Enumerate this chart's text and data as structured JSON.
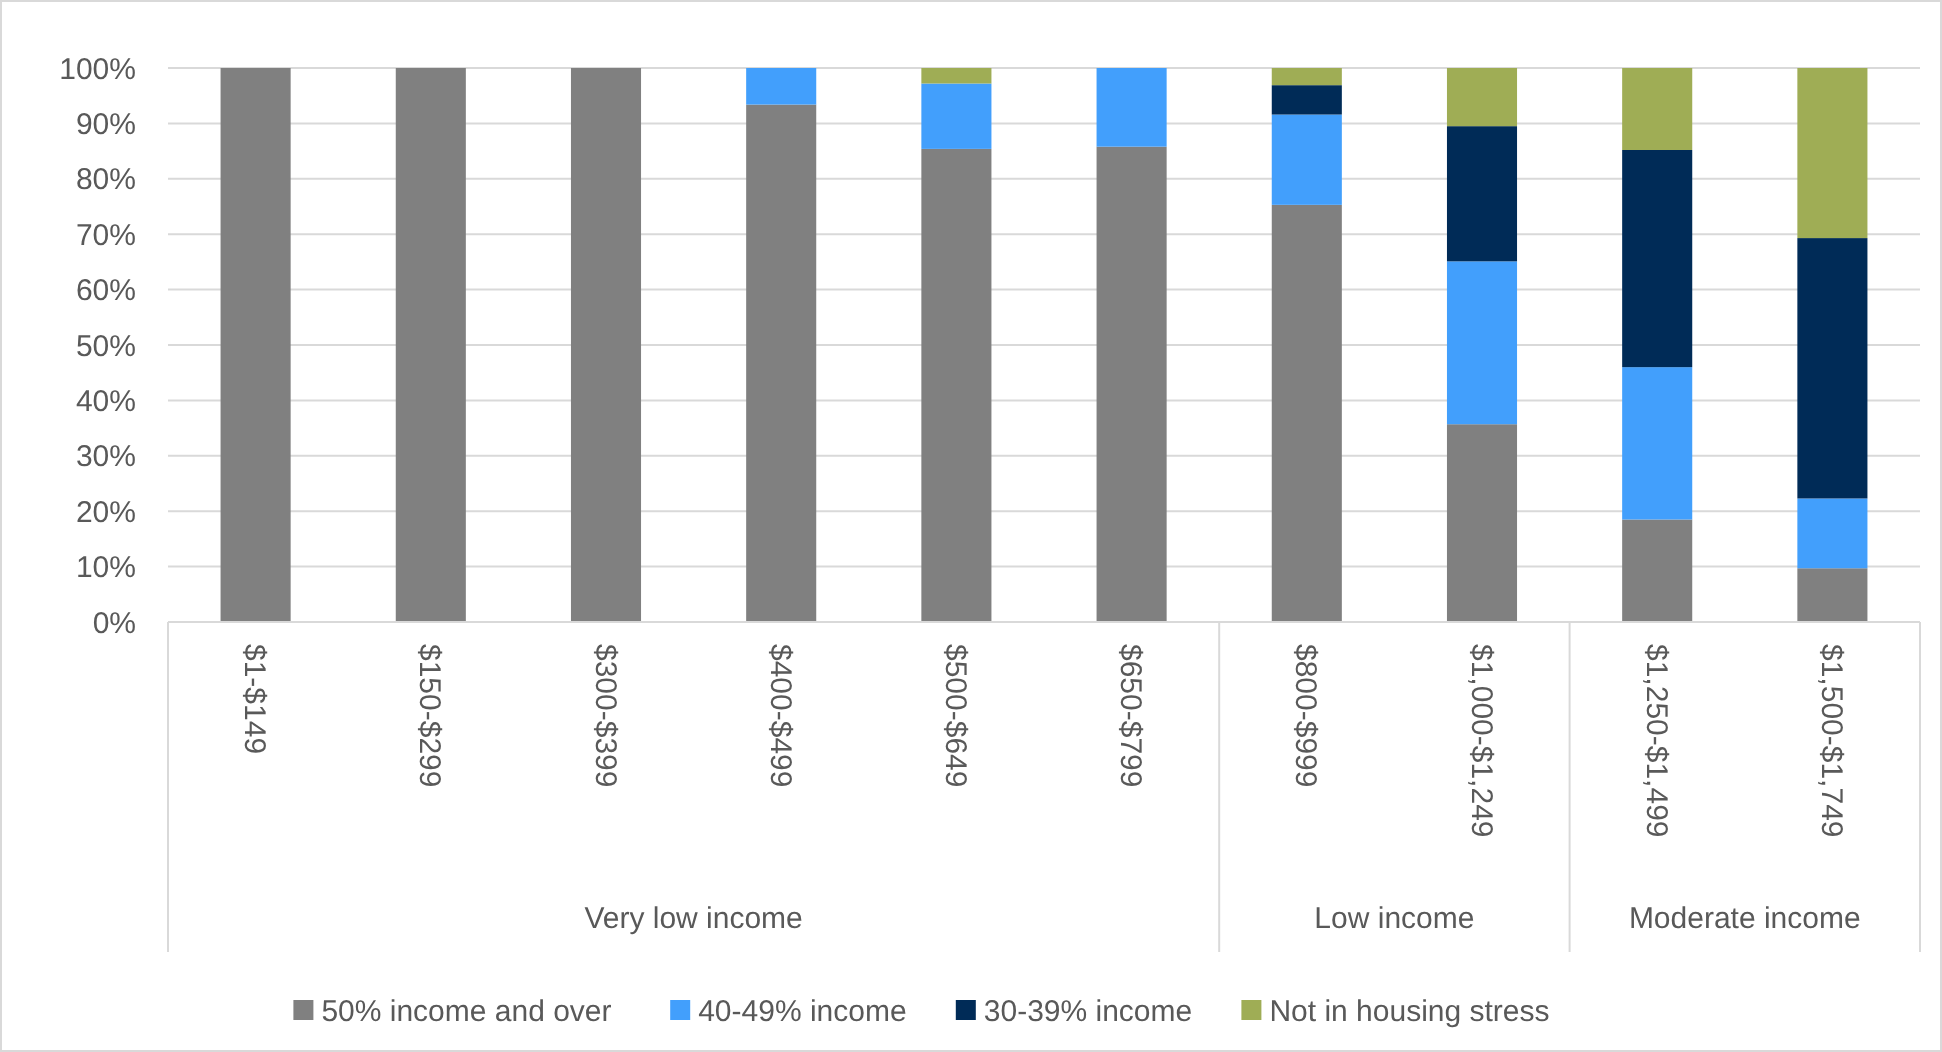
{
  "chart_data": {
    "type": "bar",
    "stacked": true,
    "categories": [
      "$1-$149",
      "$150-$299",
      "$300-$399",
      "$400-$499",
      "$500-$649",
      "$650-$799",
      "$800-$999",
      "$1,000-$1,249",
      "$1,250-$1,499",
      "$1,500-$1,749"
    ],
    "series": [
      {
        "name": "50% income and over",
        "color": "#808080",
        "values": [
          100,
          100,
          100,
          93.4,
          85.4,
          85.8,
          75.3,
          35.7,
          18.5,
          9.7
        ]
      },
      {
        "name": "40-49% income",
        "color": "#429ffc",
        "values": [
          0,
          0,
          0,
          6.6,
          11.8,
          14.2,
          16.3,
          29.4,
          27.5,
          12.6
        ]
      },
      {
        "name": "30-39% income",
        "color": "#002b57",
        "values": [
          0,
          0,
          0,
          0,
          0,
          0,
          5.3,
          24.4,
          39.2,
          47.0
        ]
      },
      {
        "name": "Not in housing stress",
        "color": "#9fad55",
        "values": [
          0,
          0,
          0,
          0,
          2.8,
          0,
          3.1,
          10.5,
          14.8,
          30.7
        ]
      }
    ],
    "ylim": [
      0,
      100
    ],
    "yticks": [
      {
        "value": 0,
        "label": "0%"
      },
      {
        "value": 10,
        "label": "10%"
      },
      {
        "value": 20,
        "label": "20%"
      },
      {
        "value": 30,
        "label": "30%"
      },
      {
        "value": 40,
        "label": "40%"
      },
      {
        "value": 50,
        "label": "50%"
      },
      {
        "value": 60,
        "label": "60%"
      },
      {
        "value": 70,
        "label": "70%"
      },
      {
        "value": 80,
        "label": "80%"
      },
      {
        "value": 90,
        "label": "90%"
      },
      {
        "value": 100,
        "label": "100%"
      }
    ],
    "grid": "y",
    "legend": "bottom",
    "annotations": [
      "Very low income",
      "Low income",
      "Moderate income"
    ]
  }
}
